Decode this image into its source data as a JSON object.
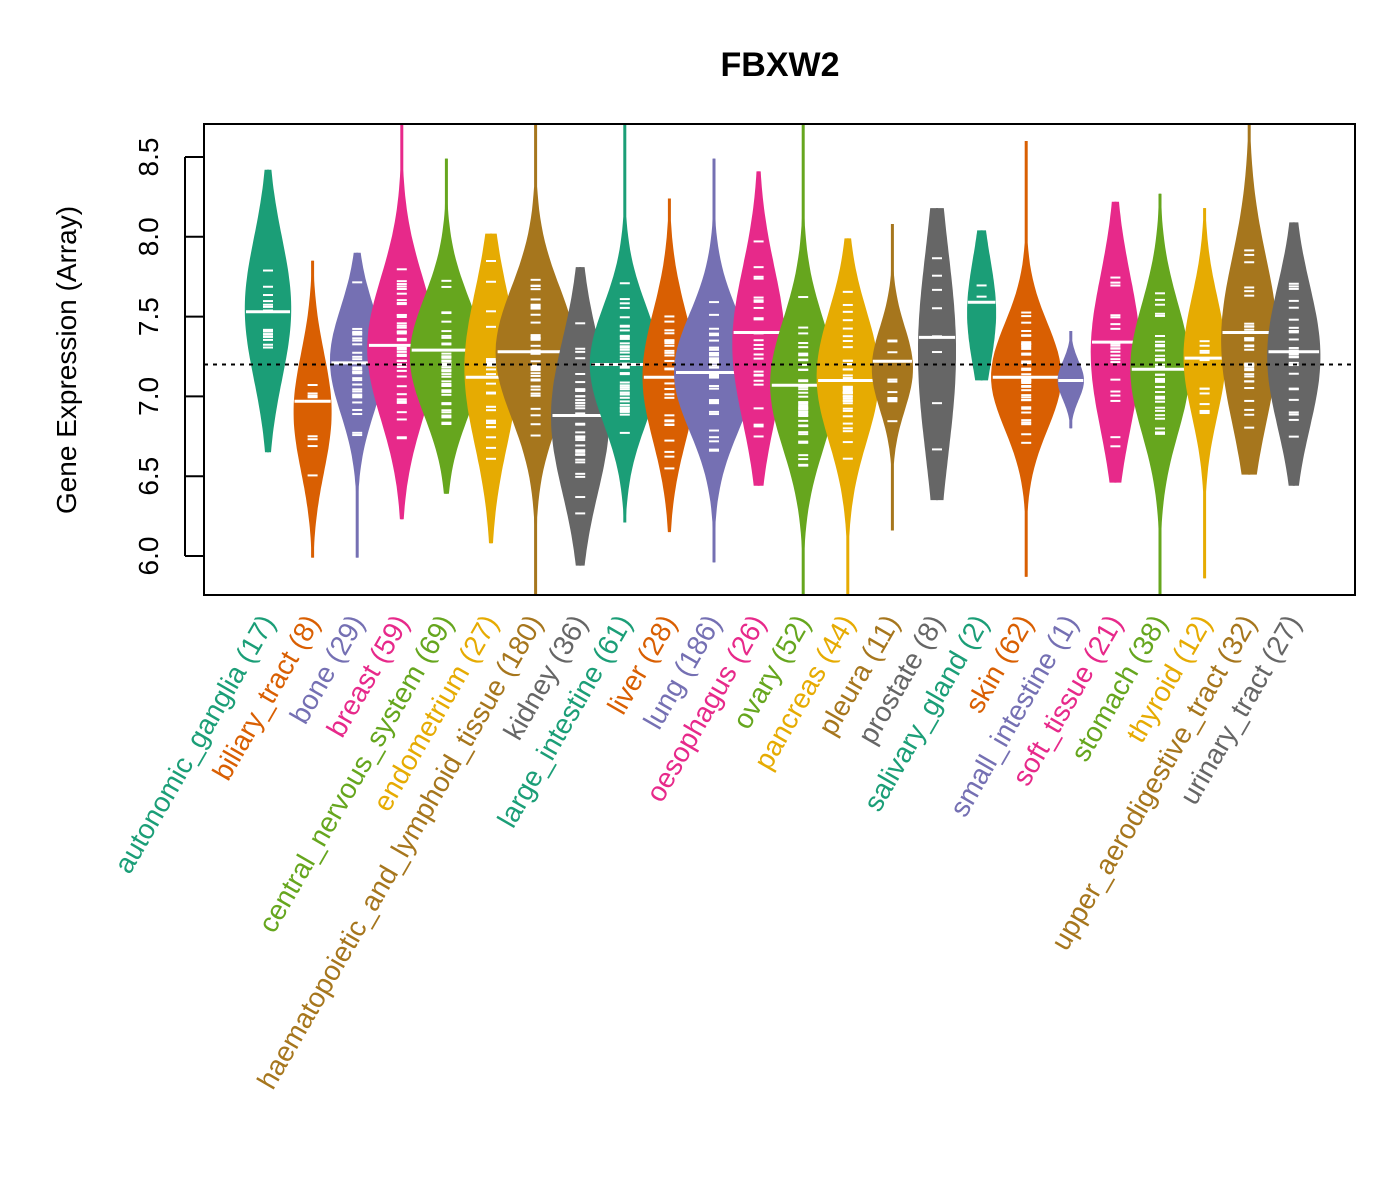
{
  "chart_data": {
    "type": "violin",
    "title": "FBXW2",
    "xlabel": "",
    "ylabel": "Gene Expression (Array)",
    "ylim": [
      5.75,
      8.71
    ],
    "yticks": [
      6.0,
      6.5,
      7.0,
      7.5,
      8.0,
      8.5
    ],
    "ytick_labels": [
      "6.0",
      "6.5",
      "7.0",
      "7.5",
      "8.0",
      "8.5"
    ],
    "reference_line": 7.2,
    "grid": false,
    "legend": "none",
    "categories": [
      {
        "name": "autonomic_ganglia",
        "n": 17,
        "label": "autonomic_ganglia (17)",
        "color": "#1B9E77",
        "min": 6.65,
        "max": 8.42,
        "median": 7.53,
        "q1": 7.25,
        "q3": 7.85
      },
      {
        "name": "biliary_tract",
        "n": 8,
        "label": "biliary_tract (8)",
        "color": "#D95F02",
        "min": 5.99,
        "max": 7.85,
        "median": 6.97,
        "q1": 6.65,
        "q3": 7.15
      },
      {
        "name": "bone",
        "n": 29,
        "label": "bone (29)",
        "color": "#7570B3",
        "min": 5.99,
        "max": 7.9,
        "median": 7.21,
        "q1": 7.0,
        "q3": 7.45
      },
      {
        "name": "breast",
        "n": 59,
        "label": "breast (59)",
        "color": "#E7298A",
        "min": 6.23,
        "max": 8.71,
        "median": 7.32,
        "q1": 7.0,
        "q3": 7.6
      },
      {
        "name": "central_nervous_system",
        "n": 69,
        "label": "central_nervous_system (69)",
        "color": "#66A61E",
        "min": 6.39,
        "max": 8.49,
        "median": 7.29,
        "q1": 7.0,
        "q3": 7.5
      },
      {
        "name": "endometrium",
        "n": 27,
        "label": "endometrium (27)",
        "color": "#E6AB02",
        "min": 6.08,
        "max": 8.02,
        "median": 7.12,
        "q1": 6.85,
        "q3": 7.5
      },
      {
        "name": "haematopoietic_and_lymphoid_tissue",
        "n": 180,
        "label": "haematopoietic_and_lymphoid_tissue (180)",
        "color": "#A6761D",
        "min": 5.75,
        "max": 8.71,
        "median": 7.28,
        "q1": 7.0,
        "q3": 7.55
      },
      {
        "name": "kidney",
        "n": 36,
        "label": "kidney (36)",
        "color": "#666666",
        "min": 5.94,
        "max": 7.81,
        "median": 6.88,
        "q1": 6.55,
        "q3": 7.2
      },
      {
        "name": "large_intestine",
        "n": 61,
        "label": "large_intestine (61)",
        "color": "#1B9E77",
        "min": 6.21,
        "max": 8.71,
        "median": 7.2,
        "q1": 6.95,
        "q3": 7.45
      },
      {
        "name": "liver",
        "n": 28,
        "label": "liver (28)",
        "color": "#D95F02",
        "min": 6.15,
        "max": 8.24,
        "median": 7.12,
        "q1": 6.85,
        "q3": 7.4
      },
      {
        "name": "lung",
        "n": 186,
        "label": "lung (186)",
        "color": "#7570B3",
        "min": 5.96,
        "max": 8.49,
        "median": 7.15,
        "q1": 6.9,
        "q3": 7.4
      },
      {
        "name": "oesophagus",
        "n": 26,
        "label": "oesophagus (26)",
        "color": "#E7298A",
        "min": 6.44,
        "max": 8.41,
        "median": 7.4,
        "q1": 7.0,
        "q3": 7.65
      },
      {
        "name": "ovary",
        "n": 52,
        "label": "ovary (52)",
        "color": "#66A61E",
        "min": 5.75,
        "max": 8.71,
        "median": 7.07,
        "q1": 6.8,
        "q3": 7.35
      },
      {
        "name": "pancreas",
        "n": 44,
        "label": "pancreas (44)",
        "color": "#E6AB02",
        "min": 5.75,
        "max": 7.99,
        "median": 7.1,
        "q1": 6.85,
        "q3": 7.4
      },
      {
        "name": "pleura",
        "n": 11,
        "label": "pleura (11)",
        "color": "#A6761D",
        "min": 6.16,
        "max": 8.08,
        "median": 7.22,
        "q1": 7.0,
        "q3": 7.35
      },
      {
        "name": "prostate",
        "n": 8,
        "label": "prostate (8)",
        "color": "#666666",
        "min": 6.35,
        "max": 8.18,
        "median": 7.37,
        "q1": 6.85,
        "q3": 7.7
      },
      {
        "name": "salivary_gland",
        "n": 2,
        "label": "salivary_gland (2)",
        "color": "#1B9E77",
        "min": 7.1,
        "max": 8.04,
        "median": 7.59,
        "q1": 7.3,
        "q3": 7.75
      },
      {
        "name": "skin",
        "n": 62,
        "label": "skin (62)",
        "color": "#D95F02",
        "min": 5.87,
        "max": 8.6,
        "median": 7.12,
        "q1": 6.9,
        "q3": 7.35
      },
      {
        "name": "small_intestine",
        "n": 1,
        "label": "small_intestine (1)",
        "color": "#7570B3",
        "min": 6.8,
        "max": 7.41,
        "median": 7.1,
        "q1": 7.1,
        "q3": 7.1
      },
      {
        "name": "soft_tissue",
        "n": 21,
        "label": "soft_tissue (21)",
        "color": "#E7298A",
        "min": 6.46,
        "max": 8.22,
        "median": 7.34,
        "q1": 6.95,
        "q3": 7.6
      },
      {
        "name": "stomach",
        "n": 38,
        "label": "stomach (38)",
        "color": "#66A61E",
        "min": 5.75,
        "max": 8.27,
        "median": 7.17,
        "q1": 6.9,
        "q3": 7.45
      },
      {
        "name": "thyroid",
        "n": 12,
        "label": "thyroid (12)",
        "color": "#E6AB02",
        "min": 5.86,
        "max": 8.18,
        "median": 7.24,
        "q1": 7.0,
        "q3": 7.5
      },
      {
        "name": "upper_aerodigestive_tract",
        "n": 32,
        "label": "upper_aerodigestive_tract (32)",
        "color": "#A6761D",
        "min": 6.51,
        "max": 8.71,
        "median": 7.4,
        "q1": 7.0,
        "q3": 7.7
      },
      {
        "name": "urinary_tract",
        "n": 27,
        "label": "urinary_tract (27)",
        "color": "#666666",
        "min": 6.44,
        "max": 8.09,
        "median": 7.28,
        "q1": 6.95,
        "q3": 7.55
      }
    ]
  }
}
